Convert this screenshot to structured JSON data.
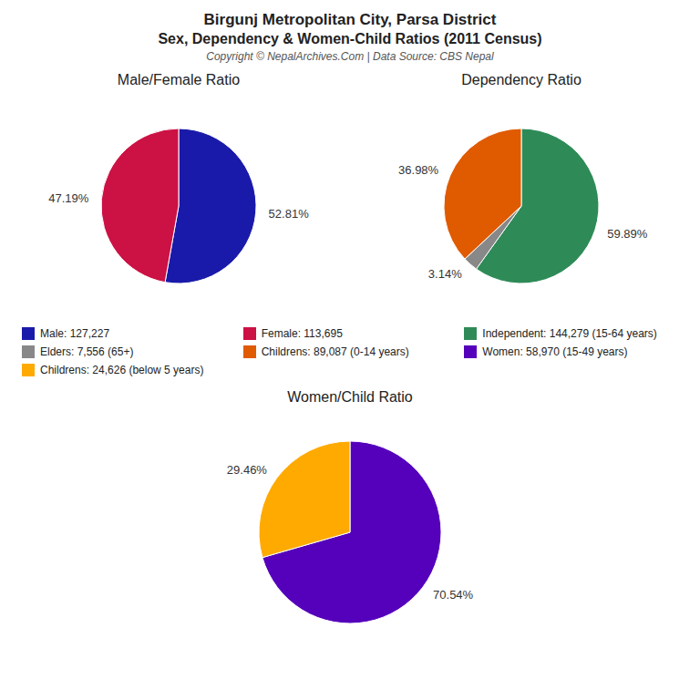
{
  "title": "Birgunj Metropolitan City, Parsa District",
  "subtitle": "Sex, Dependency & Women-Child Ratios (2011 Census)",
  "annotations": [
    "Copyright © NepalArchives.Com | Data Source: CBS Nepal"
  ],
  "chart_data": [
    {
      "type": "pie",
      "title": "Male/Female Ratio",
      "categories": [
        "Male: 127,227",
        "Female: 113,695"
      ],
      "values": [
        52.81,
        47.19
      ],
      "value_labels": [
        "52.81%",
        "47.19%"
      ],
      "colors": [
        "#1a1aaa",
        "#cc1144"
      ],
      "data_labels": true
    },
    {
      "type": "pie",
      "title": "Dependency Ratio",
      "categories": [
        "Independent: 144,279 (15-64 years)",
        "Elders: 7,556 (65+)",
        "Childrens: 89,087 (0-14 years)"
      ],
      "values": [
        59.89,
        3.14,
        36.98
      ],
      "value_labels": [
        "59.89%",
        "3.14%",
        "36.98%"
      ],
      "colors": [
        "#2e8b57",
        "#888888",
        "#e05a00"
      ],
      "data_labels": true
    },
    {
      "type": "pie",
      "title": "Women/Child Ratio",
      "categories": [
        "Women: 58,970 (15-49 years)",
        "Childrens: 24,626 (below 5 years)"
      ],
      "values": [
        70.54,
        29.46
      ],
      "value_labels": [
        "70.54%",
        "29.46%"
      ],
      "colors": [
        "#5500bb",
        "#ffaa00"
      ],
      "data_labels": true
    }
  ]
}
